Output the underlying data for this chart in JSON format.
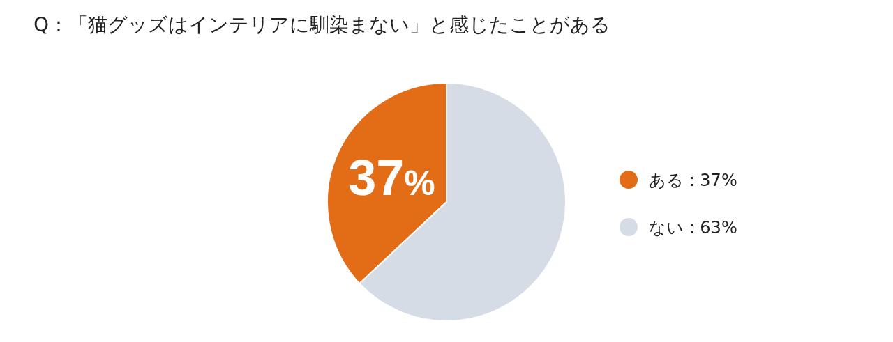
{
  "chart_data": {
    "type": "pie",
    "title": "Q：「猫グッズはインテリアに馴染まない」と感じたことがある",
    "categories": [
      "ある : 37%",
      "ない : 63%"
    ],
    "values": [
      37,
      63
    ],
    "colors": [
      "#e36c17",
      "#d6dce5"
    ],
    "value_labels": [
      "37%",
      null
    ],
    "legend": "right"
  }
}
